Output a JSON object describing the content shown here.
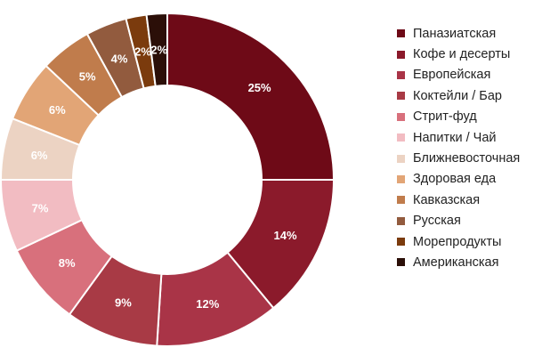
{
  "chart_data": {
    "type": "pie",
    "variant": "donut",
    "title": "",
    "legend_position": "right",
    "categories": [
      "Паназиатская",
      "Кофе и десерты",
      "Европейская",
      "Коктейли / Бар",
      "Стрит-фуд",
      "Напитки / Чай",
      "Ближневосточная",
      "Здоровая еда",
      "Кавказская",
      "Русская",
      "Морепродукты",
      "Американская"
    ],
    "values": [
      25,
      14,
      12,
      9,
      8,
      7,
      6,
      6,
      5,
      4,
      2,
      2
    ],
    "labels": [
      "25%",
      "14%",
      "12%",
      "9%",
      "8%",
      "7%",
      "6%",
      "6%",
      "5%",
      "4%",
      "2%",
      "2%"
    ],
    "colors": [
      "#6e0a17",
      "#8b1a2b",
      "#a93447",
      "#a83a45",
      "#d8707c",
      "#f2bcc2",
      "#ecd3c3",
      "#e2a576",
      "#c07c4c",
      "#925b3e",
      "#7b3b0d",
      "#2b0f08"
    ],
    "label_colors": [
      "#ffffff",
      "#ffffff",
      "#ffffff",
      "#ffffff",
      "#ffffff",
      "#ffffff",
      "#ffffff",
      "#ffffff",
      "#ffffff",
      "#ffffff",
      "#ffffff",
      "#ffffff"
    ]
  }
}
